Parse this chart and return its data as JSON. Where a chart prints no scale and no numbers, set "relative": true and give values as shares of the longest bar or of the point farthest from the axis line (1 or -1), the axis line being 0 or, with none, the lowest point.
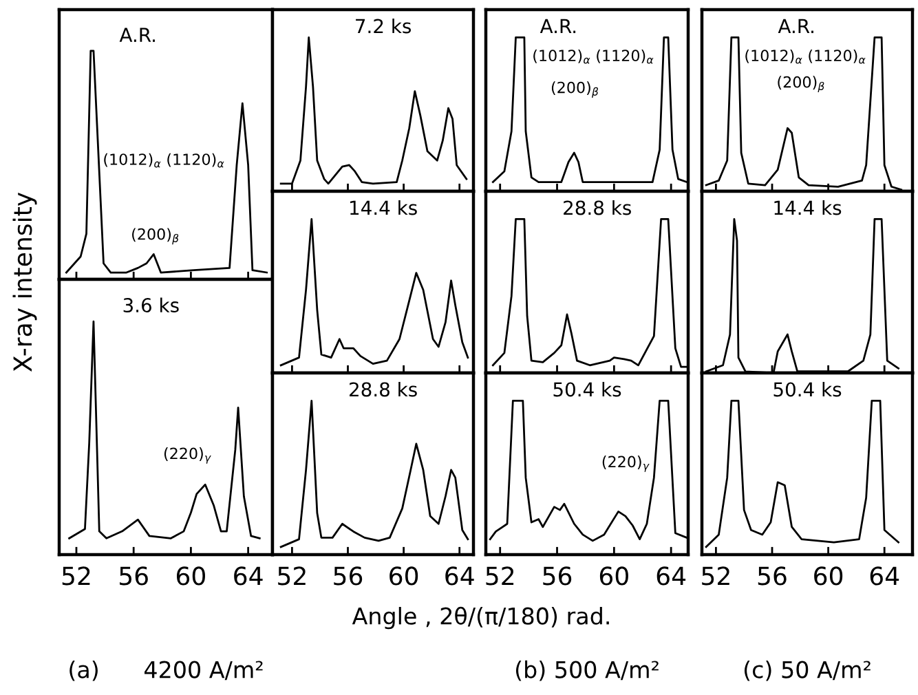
{
  "chart_data": [
    {
      "type": "line",
      "title": "A.R.",
      "xlabel": "Angle , 2θ/(π/180) rad.",
      "ylabel": "X-ray intensity",
      "relative": true,
      "xlim": [
        50.8,
        65.7
      ],
      "xticks": [
        52,
        56,
        60,
        64
      ],
      "tick_labels": false,
      "x": [
        51.3,
        52.3,
        52.7,
        53.0,
        53.2,
        53.9,
        54.4,
        55.5,
        56.3,
        56.9,
        57.4,
        57.9,
        60.2,
        62.7,
        63.2,
        63.6,
        64.0,
        64.3,
        65.3
      ],
      "series": [
        {
          "color": "#000000",
          "values": [
            0.03,
            0.1,
            0.2,
            1,
            1,
            0.07,
            0.03,
            0.03,
            0.05,
            0.07,
            0.11,
            0.03,
            0.04,
            0.05,
            0.5,
            0.77,
            0.5,
            0.04,
            0.03
          ]
        }
      ],
      "annotations": [
        "(1012)$_{α}$ (1120)$_{α}$",
        "(200)$_{β}$"
      ]
    },
    {
      "type": "line",
      "title": "3.6 ks",
      "relative": true,
      "xlim": [
        50.8,
        65.7
      ],
      "xticks": [
        52,
        56,
        60,
        64
      ],
      "tick_labels": "x",
      "x": [
        51.5,
        52.6,
        52.9,
        53.2,
        53.6,
        54.1,
        55.2,
        56.3,
        57.1,
        58.6,
        59.5,
        60.0,
        60.4,
        61.0,
        61.6,
        62.1,
        62.5,
        63.1,
        63.3,
        63.7,
        64.2,
        64.8
      ],
      "series": [
        {
          "color": "#000000",
          "values": [
            0.07,
            0.11,
            0.48,
            1,
            0.1,
            0.07,
            0.1,
            0.15,
            0.08,
            0.07,
            0.1,
            0.18,
            0.26,
            0.3,
            0.21,
            0.1,
            0.1,
            0.45,
            0.63,
            0.25,
            0.08,
            0.07
          ]
        }
      ],
      "annotations": [
        "(220)$_{γ}$",
        "(a)      4200 A/m²"
      ]
    },
    {
      "type": "line",
      "title": "7.2 ks",
      "relative": true,
      "xlim": [
        50.6,
        65.0
      ],
      "xticks": [
        52,
        56,
        60,
        64
      ],
      "tick_labels": false,
      "x": [
        51.2,
        52.0,
        52.6,
        53.0,
        53.2,
        53.5,
        53.8,
        54.3,
        54.6,
        55.6,
        56.1,
        56.5,
        57.0,
        57.8,
        59.5,
        59.9,
        60.4,
        60.8,
        61.2,
        61.7,
        62.4,
        62.8,
        63.2,
        63.5,
        63.8,
        64.5
      ],
      "series": [
        {
          "color": "#000000",
          "values": [
            0.05,
            0.05,
            0.2,
            0.68,
            1,
            0.68,
            0.2,
            0.08,
            0.05,
            0.16,
            0.17,
            0.13,
            0.06,
            0.05,
            0.06,
            0.2,
            0.41,
            0.65,
            0.49,
            0.26,
            0.2,
            0.33,
            0.54,
            0.47,
            0.17,
            0.08
          ]
        }
      ]
    },
    {
      "type": "line",
      "title": "14.4 ks",
      "relative": true,
      "xlim": [
        50.6,
        65.0
      ],
      "xticks": [
        52,
        56,
        60,
        64
      ],
      "tick_labels": false,
      "x": [
        51.2,
        52.5,
        53.0,
        53.4,
        53.8,
        54.1,
        54.8,
        55.4,
        55.7,
        56.4,
        56.9,
        57.8,
        58.8,
        59.7,
        60.4,
        60.9,
        61.4,
        62.1,
        62.5,
        63.0,
        63.4,
        63.7,
        64.2,
        64.6
      ],
      "series": [
        {
          "color": "#000000",
          "values": [
            0.05,
            0.1,
            0.54,
            1,
            0.41,
            0.12,
            0.1,
            0.22,
            0.16,
            0.16,
            0.11,
            0.06,
            0.08,
            0.22,
            0.47,
            0.65,
            0.54,
            0.22,
            0.17,
            0.33,
            0.6,
            0.44,
            0.2,
            0.1
          ]
        }
      ]
    },
    {
      "type": "line",
      "title": "28.8 ks",
      "relative": true,
      "xlim": [
        50.6,
        65.0
      ],
      "xticks": [
        52,
        56,
        60,
        64
      ],
      "tick_labels": "x",
      "x": [
        51.2,
        52.5,
        53.0,
        53.4,
        53.8,
        54.1,
        54.9,
        55.6,
        56.4,
        57.2,
        58.2,
        59.0,
        59.9,
        60.5,
        60.9,
        61.4,
        61.9,
        62.5,
        63.0,
        63.4,
        63.7,
        64.2,
        64.6
      ],
      "series": [
        {
          "color": "#000000",
          "values": [
            0.05,
            0.1,
            0.55,
            1,
            0.27,
            0.11,
            0.11,
            0.2,
            0.15,
            0.11,
            0.09,
            0.11,
            0.3,
            0.55,
            0.72,
            0.55,
            0.25,
            0.2,
            0.38,
            0.55,
            0.5,
            0.16,
            0.1
          ]
        }
      ]
    },
    {
      "type": "line",
      "title": "A.R.",
      "relative": true,
      "xlim": [
        51.0,
        65.2
      ],
      "xticks": [
        52,
        56,
        60,
        64
      ],
      "tick_labels": false,
      "x": [
        51.5,
        52.3,
        52.8,
        53.1,
        53.7,
        53.8,
        54.2,
        54.7,
        56.3,
        56.8,
        57.2,
        57.5,
        57.8,
        59.7,
        62.7,
        63.2,
        63.5,
        63.8,
        64.1,
        64.5,
        65.1
      ],
      "series": [
        {
          "color": "#000000",
          "values": [
            0.06,
            0.13,
            0.39,
            1,
            1,
            0.39,
            0.09,
            0.06,
            0.06,
            0.19,
            0.25,
            0.19,
            0.06,
            0.06,
            0.06,
            0.27,
            1,
            1,
            0.27,
            0.08,
            0.06
          ]
        }
      ],
      "annotations": [
        "(1012)$_{α}$ (1120)$_{α}$",
        "(200)$_{β}$"
      ]
    },
    {
      "type": "line",
      "title": "28.8 ks",
      "relative": true,
      "xlim": [
        51.0,
        65.2
      ],
      "xticks": [
        52,
        56,
        60,
        64
      ],
      "tick_labels": false,
      "x": [
        51.5,
        52.3,
        52.8,
        53.1,
        53.7,
        53.9,
        54.2,
        55.0,
        55.8,
        56.3,
        56.7,
        57.0,
        57.4,
        58.3,
        59.7,
        60.0,
        60.7,
        61.2,
        61.7,
        62.8,
        63.3,
        63.8,
        64.3,
        64.7,
        65.1
      ],
      "series": [
        {
          "color": "#000000",
          "values": [
            0.05,
            0.13,
            0.5,
            1,
            1,
            0.37,
            0.08,
            0.07,
            0.13,
            0.18,
            0.38,
            0.26,
            0.08,
            0.05,
            0.08,
            0.1,
            0.09,
            0.08,
            0.05,
            0.24,
            1,
            1,
            0.16,
            0.04,
            0.04
          ]
        }
      ]
    },
    {
      "type": "line",
      "title": "50.4 ks",
      "relative": true,
      "xlim": [
        51.0,
        65.2
      ],
      "xticks": [
        52,
        56,
        60,
        64
      ],
      "tick_labels": "x",
      "x": [
        51.3,
        51.7,
        52.5,
        52.9,
        53.6,
        53.8,
        54.2,
        54.7,
        55.0,
        55.8,
        56.2,
        56.5,
        57.2,
        57.8,
        58.5,
        59.3,
        60.3,
        60.8,
        61.3,
        61.8,
        62.3,
        62.8,
        63.2,
        63.8,
        64.3,
        65.1
      ],
      "series": [
        {
          "color": "#000000",
          "values": [
            0.1,
            0.15,
            0.2,
            1,
            1,
            0.5,
            0.21,
            0.23,
            0.18,
            0.31,
            0.29,
            0.33,
            0.2,
            0.13,
            0.09,
            0.13,
            0.28,
            0.25,
            0.19,
            0.1,
            0.2,
            0.5,
            1,
            1,
            0.14,
            0.11
          ]
        }
      ],
      "annotations": [
        "(220)$_{γ}$",
        "(b) 500 A/m²"
      ]
    },
    {
      "type": "line",
      "title": "A.R.",
      "relative": true,
      "xlim": [
        51.0,
        66.0
      ],
      "xticks": [
        52,
        56,
        60,
        64
      ],
      "tick_labels": false,
      "x": [
        51.3,
        52.2,
        52.8,
        53.1,
        53.6,
        53.8,
        54.3,
        55.5,
        56.4,
        57.1,
        57.4,
        57.9,
        58.6,
        60.7,
        62.4,
        62.7,
        63.3,
        63.8,
        64.0,
        64.5,
        65.2
      ],
      "series": [
        {
          "color": "#000000",
          "values": [
            0.04,
            0.07,
            0.2,
            1,
            1,
            0.25,
            0.05,
            0.04,
            0.14,
            0.41,
            0.38,
            0.09,
            0.04,
            0.03,
            0.07,
            0.17,
            1,
            1,
            0.17,
            0.03,
            0.01
          ]
        }
      ],
      "annotations": [
        "(1012)$_{α}$ (1120)$_{α}$",
        "(200)$_{β}$"
      ]
    },
    {
      "type": "line",
      "title": "14.4 ks",
      "relative": true,
      "xlim": [
        51.0,
        66.0
      ],
      "xticks": [
        52,
        56,
        60,
        64
      ],
      "tick_labels": false,
      "x": [
        51.3,
        52.5,
        53.0,
        53.3,
        53.5,
        53.6,
        54.1,
        56.1,
        56.4,
        57.1,
        57.4,
        57.8,
        59.4,
        61.4,
        62.5,
        63.0,
        63.3,
        63.8,
        64.2,
        65.0
      ],
      "series": [
        {
          "color": "#000000",
          "values": [
            0.01,
            0.05,
            0.25,
            1,
            0.86,
            0.1,
            0.01,
            0,
            0.14,
            0.25,
            0.14,
            0.01,
            0.01,
            0.01,
            0.08,
            0.25,
            1,
            1,
            0.08,
            0.03
          ]
        }
      ]
    },
    {
      "type": "line",
      "title": "50.4 ks",
      "relative": true,
      "xlim": [
        51.0,
        66.0
      ],
      "xticks": [
        52,
        56,
        60,
        64
      ],
      "tick_labels": "x",
      "x": [
        51.3,
        52.2,
        52.8,
        53.1,
        53.6,
        54.0,
        54.5,
        55.3,
        55.9,
        56.4,
        56.9,
        57.4,
        58.1,
        60.4,
        62.2,
        62.7,
        63.1,
        63.7,
        64.0,
        65.0
      ],
      "series": [
        {
          "color": "#000000",
          "values": [
            0.05,
            0.13,
            0.5,
            1,
            1,
            0.29,
            0.16,
            0.13,
            0.21,
            0.47,
            0.45,
            0.18,
            0.1,
            0.08,
            0.1,
            0.37,
            1,
            1,
            0.16,
            0.08
          ]
        }
      ],
      "annotations": [
        "(c) 50 A/m²"
      ]
    }
  ]
}
